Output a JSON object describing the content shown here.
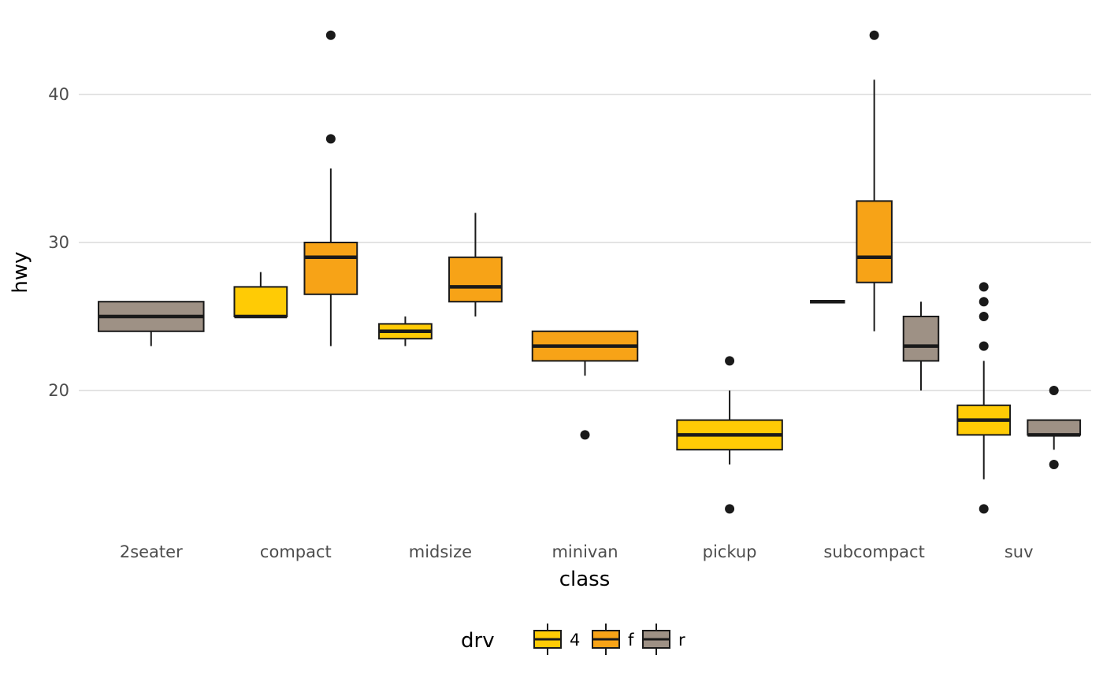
{
  "chart_data": {
    "type": "boxplot",
    "title": "",
    "xlabel": "class",
    "ylabel": "hwy",
    "ylim": [
      10.5,
      45.5
    ],
    "yticks": [
      20,
      30,
      40
    ],
    "grid": true,
    "categories": [
      "2seater",
      "compact",
      "midsize",
      "minivan",
      "pickup",
      "subcompact",
      "suv"
    ],
    "legend": {
      "title": "drv",
      "position": "bottom",
      "entries": [
        {
          "label": "4",
          "color": "#FFCB05"
        },
        {
          "label": "f",
          "color": "#F7A317"
        },
        {
          "label": "r",
          "color": "#9E9185"
        }
      ]
    },
    "groups": [
      {
        "category": "2seater",
        "slot": 0,
        "nslots": 1,
        "drv": "r",
        "whisker_low": 23,
        "q1": 24,
        "median": 25,
        "q3": 26,
        "whisker_high": 26,
        "outliers": []
      },
      {
        "category": "compact",
        "slot": 0,
        "nslots": 2,
        "drv": "4",
        "whisker_low": 25,
        "q1": 25,
        "median": 25,
        "q3": 27,
        "whisker_high": 28,
        "outliers": []
      },
      {
        "category": "compact",
        "slot": 1,
        "nslots": 2,
        "drv": "f",
        "whisker_low": 23,
        "q1": 26.5,
        "median": 29,
        "q3": 30,
        "whisker_high": 35,
        "outliers": [
          37,
          44
        ]
      },
      {
        "category": "midsize",
        "slot": 0,
        "nslots": 2,
        "drv": "4",
        "whisker_low": 23,
        "q1": 23.5,
        "median": 24,
        "q3": 24.5,
        "whisker_high": 25,
        "outliers": []
      },
      {
        "category": "midsize",
        "slot": 1,
        "nslots": 2,
        "drv": "f",
        "whisker_low": 25,
        "q1": 26,
        "median": 27,
        "q3": 29,
        "whisker_high": 32,
        "outliers": []
      },
      {
        "category": "minivan",
        "slot": 0,
        "nslots": 1,
        "drv": "f",
        "whisker_low": 21,
        "q1": 22,
        "median": 23,
        "q3": 24,
        "whisker_high": 24,
        "outliers": [
          17
        ]
      },
      {
        "category": "pickup",
        "slot": 0,
        "nslots": 1,
        "drv": "4",
        "whisker_low": 15,
        "q1": 16,
        "median": 17,
        "q3": 18,
        "whisker_high": 20,
        "outliers": [
          22,
          12
        ]
      },
      {
        "category": "subcompact",
        "slot": 0,
        "nslots": 3,
        "drv": "4",
        "whisker_low": 26,
        "q1": 26,
        "median": 26,
        "q3": 26,
        "whisker_high": 26,
        "outliers": []
      },
      {
        "category": "subcompact",
        "slot": 1,
        "nslots": 3,
        "drv": "f",
        "whisker_low": 24,
        "q1": 27.3,
        "median": 29,
        "q3": 32.8,
        "whisker_high": 41,
        "outliers": [
          44
        ]
      },
      {
        "category": "subcompact",
        "slot": 2,
        "nslots": 3,
        "drv": "r",
        "whisker_low": 20,
        "q1": 22,
        "median": 23,
        "q3": 25,
        "whisker_high": 26,
        "outliers": []
      },
      {
        "category": "suv",
        "slot": 0,
        "nslots": 2,
        "drv": "4",
        "whisker_low": 14,
        "q1": 17,
        "median": 18,
        "q3": 19,
        "whisker_high": 22,
        "outliers": [
          23,
          25,
          26,
          27,
          12
        ]
      },
      {
        "category": "suv",
        "slot": 1,
        "nslots": 2,
        "drv": "r",
        "whisker_low": 16,
        "q1": 17,
        "median": 17,
        "q3": 18,
        "whisker_high": 18,
        "outliers": [
          20,
          15
        ]
      }
    ]
  }
}
